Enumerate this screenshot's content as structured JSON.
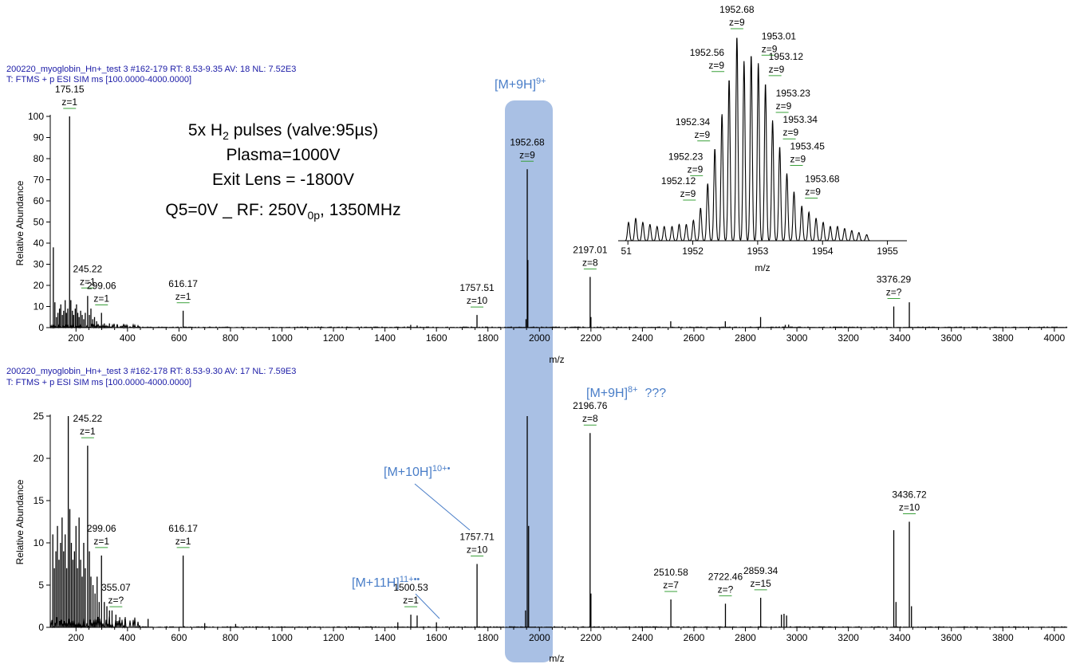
{
  "spectra": [
    {
      "header_line1": "200220_myoglobin_Hn+_test 3 #162-179  RT: 8.53-9.35  AV: 18  NL: 7.52E3",
      "header_line2": "T: FTMS + p ESI SIM ms [100.0000-4000.0000]",
      "ylabel": "Relative Abundance",
      "xlabel": "m/z"
    },
    {
      "header_line1": "200220_myoglobin_Hn+_test 3 #162-178  RT: 8.53-9.30  AV: 17  NL: 7.59E3",
      "header_line2": "T: FTMS + p ESI SIM ms [100.0000-4000.0000]",
      "ylabel": "Relative Abundance",
      "xlabel": "m/z"
    }
  ],
  "conditions": {
    "line1_a": "5x H",
    "line1_sub": "2",
    "line1_b": " pulses (valve:95µs)",
    "line2": "Plasma=1000V",
    "line3": "Exit Lens = -1800V",
    "line4_a": "Q5=0V _ RF: 250V",
    "line4_sub": "0p",
    "line4_b": ", 1350MHz"
  },
  "annotations": {
    "m9h_top": {
      "base": "[M+9H]",
      "sup": "9+"
    },
    "m9h_8": {
      "base": "[M+9H]",
      "sup": "8+",
      "tail": "  ???"
    },
    "m10h": {
      "base": "[M+10H]",
      "sup": "10+•"
    },
    "m11h": {
      "base": "[M+11H]",
      "sup": "11+••"
    }
  },
  "colors": {
    "highlight": "#a9c0e4",
    "annotation": "#4a7ec8",
    "header": "#1a1aa6",
    "trace": "#000000",
    "charge_tick": "#3aa03a"
  },
  "chart_data": [
    {
      "type": "line",
      "name": "spectrum-top",
      "x_range": [
        100,
        4050
      ],
      "xticks": [
        "200",
        "400",
        "600",
        "800",
        "1000",
        "1200",
        "1400",
        "1600",
        "1800",
        "2000",
        "2200",
        "2400",
        "2600",
        "2800",
        "3000",
        "3200",
        "3400",
        "3600",
        "3800",
        "4000"
      ],
      "y_range": [
        0,
        100
      ],
      "yticks": [
        "0",
        "10",
        "20",
        "30",
        "40",
        "50",
        "60",
        "70",
        "80",
        "90",
        "100"
      ],
      "sticks": [
        [
          112,
          38
        ],
        [
          118,
          12
        ],
        [
          124,
          5
        ],
        [
          130,
          7
        ],
        [
          136,
          9
        ],
        [
          141,
          11
        ],
        [
          147,
          6
        ],
        [
          152,
          8
        ],
        [
          158,
          13
        ],
        [
          163,
          7
        ],
        [
          168,
          9
        ],
        [
          175.15,
          100
        ],
        [
          180,
          13
        ],
        [
          186,
          8
        ],
        [
          191,
          6
        ],
        [
          197,
          9
        ],
        [
          202,
          11
        ],
        [
          207,
          7
        ],
        [
          212,
          5
        ],
        [
          218,
          8
        ],
        [
          224,
          6
        ],
        [
          230,
          4
        ],
        [
          236,
          7
        ],
        [
          245.22,
          15
        ],
        [
          252,
          6
        ],
        [
          258,
          9
        ],
        [
          265,
          4
        ],
        [
          272,
          5
        ],
        [
          280,
          3
        ],
        [
          299.06,
          7
        ],
        [
          310,
          2
        ],
        [
          330,
          2
        ],
        [
          360,
          1.5
        ],
        [
          400,
          1
        ],
        [
          616.17,
          8
        ],
        [
          1500,
          1.3
        ],
        [
          1525,
          1
        ],
        [
          1757.51,
          6
        ],
        [
          1952.68,
          75
        ],
        [
          1955,
          32
        ],
        [
          1948,
          4
        ],
        [
          2197.01,
          24
        ],
        [
          2200,
          5
        ],
        [
          2510,
          3
        ],
        [
          2722,
          3
        ],
        [
          2859,
          5
        ],
        [
          2955,
          1.3
        ],
        [
          2968,
          1.4
        ],
        [
          3376.29,
          10
        ],
        [
          3436.72,
          12
        ]
      ],
      "peak_labels": [
        {
          "mz": 175.15,
          "y": 100,
          "label": "175.15",
          "z": "z=1"
        },
        {
          "mz": 245.22,
          "y": 15,
          "label": "245.22",
          "z": "z=1"
        },
        {
          "mz": 299.06,
          "y": 7,
          "label": "299.06",
          "z": "z=1"
        },
        {
          "mz": 616.17,
          "y": 8,
          "label": "616.17",
          "z": "z=1"
        },
        {
          "mz": 1757.51,
          "y": 6,
          "label": "1757.51",
          "z": "z=10"
        },
        {
          "mz": 1952.68,
          "y": 75,
          "label": "1952.68",
          "z": "z=9"
        },
        {
          "mz": 2197.01,
          "y": 24,
          "label": "2197.01",
          "z": "z=8"
        },
        {
          "mz": 3376.29,
          "y": 10,
          "label": "3376.29",
          "z": "z=?"
        }
      ]
    },
    {
      "type": "line",
      "name": "spectrum-bottom",
      "x_range": [
        100,
        4050
      ],
      "xticks": [
        "200",
        "400",
        "600",
        "800",
        "1000",
        "1200",
        "1400",
        "1600",
        "1800",
        "2000",
        "2200",
        "2400",
        "2600",
        "2800",
        "3000",
        "3200",
        "3400",
        "3600",
        "3800",
        "4000"
      ],
      "y_range": [
        0,
        25
      ],
      "yticks": [
        "0",
        "5",
        "10",
        "15",
        "20",
        "25"
      ],
      "sticks": [
        [
          110,
          11
        ],
        [
          116,
          7
        ],
        [
          122,
          9
        ],
        [
          128,
          12
        ],
        [
          134,
          8
        ],
        [
          140,
          10
        ],
        [
          146,
          13
        ],
        [
          152,
          9
        ],
        [
          158,
          11
        ],
        [
          164,
          7
        ],
        [
          170,
          25
        ],
        [
          176,
          14
        ],
        [
          182,
          10
        ],
        [
          188,
          8
        ],
        [
          194,
          9
        ],
        [
          200,
          12
        ],
        [
          206,
          7
        ],
        [
          212,
          13
        ],
        [
          218,
          8
        ],
        [
          224,
          6
        ],
        [
          230,
          10
        ],
        [
          236,
          7
        ],
        [
          245.22,
          21.5
        ],
        [
          252,
          9
        ],
        [
          258,
          6
        ],
        [
          266,
          5
        ],
        [
          274,
          4
        ],
        [
          282,
          6
        ],
        [
          290,
          3
        ],
        [
          299.06,
          8.5
        ],
        [
          310,
          3
        ],
        [
          320,
          2.5
        ],
        [
          330,
          2
        ],
        [
          340,
          2
        ],
        [
          355.07,
          1.5
        ],
        [
          370,
          1.2
        ],
        [
          390,
          1
        ],
        [
          480,
          1
        ],
        [
          616.17,
          8.5
        ],
        [
          700,
          0.5
        ],
        [
          820,
          0.4
        ],
        [
          1450,
          0.6
        ],
        [
          1500.53,
          1.5
        ],
        [
          1525,
          1.4
        ],
        [
          1600,
          0.6
        ],
        [
          1757.71,
          7.5
        ],
        [
          1952.68,
          25
        ],
        [
          1958,
          12
        ],
        [
          1946,
          2
        ],
        [
          2196.76,
          23
        ],
        [
          2200,
          4
        ],
        [
          2510.58,
          3.3
        ],
        [
          2722.46,
          2.8
        ],
        [
          2859.34,
          3.5
        ],
        [
          2940,
          1.5
        ],
        [
          2950,
          1.6
        ],
        [
          2960,
          1.4
        ],
        [
          3376.29,
          11.5
        ],
        [
          3385,
          3
        ],
        [
          3436.72,
          12.5
        ],
        [
          3445,
          2.5
        ]
      ],
      "peak_labels": [
        {
          "mz": 245.22,
          "y": 21.5,
          "label": "245.22",
          "z": "z=1"
        },
        {
          "mz": 299.06,
          "y": 8.5,
          "label": "299.06",
          "z": "z=1"
        },
        {
          "mz": 355.07,
          "y": 1.5,
          "label": "355.07",
          "z": "z=?"
        },
        {
          "mz": 616.17,
          "y": 8.5,
          "label": "616.17",
          "z": "z=1"
        },
        {
          "mz": 1500.53,
          "y": 1.5,
          "label": "1500.53",
          "z": "z=1"
        },
        {
          "mz": 1757.71,
          "y": 7.5,
          "label": "1757.71",
          "z": "z=10"
        },
        {
          "mz": 2196.76,
          "y": 23,
          "label": "2196.76",
          "z": "z=8"
        },
        {
          "mz": 2510.58,
          "y": 3.3,
          "label": "2510.58",
          "z": "z=7"
        },
        {
          "mz": 2722.46,
          "y": 2.8,
          "label": "2722.46",
          "z": "z=?"
        },
        {
          "mz": 2859.34,
          "y": 3.5,
          "label": "2859.34",
          "z": "z=15"
        },
        {
          "mz": 3436.72,
          "y": 12.5,
          "label": "3436.72",
          "z": "z=10"
        }
      ]
    },
    {
      "type": "line",
      "name": "inset-isotope-envelope",
      "x_range": [
        1950.85,
        1955.3
      ],
      "xticks": [
        "51",
        "1952",
        "1953",
        "1954",
        "1955"
      ],
      "xlabel": "m/z",
      "y_range": [
        0,
        100
      ],
      "sticks": [
        [
          1951.01,
          9
        ],
        [
          1951.12,
          11
        ],
        [
          1951.23,
          9
        ],
        [
          1951.34,
          8
        ],
        [
          1951.45,
          7
        ],
        [
          1951.56,
          7
        ],
        [
          1951.68,
          7
        ],
        [
          1951.79,
          8
        ],
        [
          1951.9,
          8
        ],
        [
          1952.01,
          10
        ],
        [
          1952.12,
          16
        ],
        [
          1952.23,
          28
        ],
        [
          1952.34,
          45
        ],
        [
          1952.45,
          62
        ],
        [
          1952.56,
          79
        ],
        [
          1952.68,
          100
        ],
        [
          1952.79,
          88
        ],
        [
          1952.9,
          91
        ],
        [
          1953.01,
          87
        ],
        [
          1953.12,
          77
        ],
        [
          1953.23,
          59
        ],
        [
          1953.34,
          46
        ],
        [
          1953.45,
          33
        ],
        [
          1953.56,
          24
        ],
        [
          1953.68,
          17
        ],
        [
          1953.79,
          14
        ],
        [
          1953.9,
          11
        ],
        [
          1954.01,
          9
        ],
        [
          1954.12,
          7
        ],
        [
          1954.23,
          7
        ],
        [
          1954.34,
          6
        ],
        [
          1954.45,
          5
        ],
        [
          1954.56,
          4
        ],
        [
          1954.68,
          3
        ]
      ],
      "peak_labels": [
        {
          "mz": 1952.68,
          "y": 100,
          "label": "1952.68",
          "z": "z=9"
        },
        {
          "mz": 1952.56,
          "y": 79,
          "label": "1952.56",
          "z": "z=9"
        },
        {
          "mz": 1953.01,
          "y": 87,
          "label": "1953.01",
          "z": "z=9"
        },
        {
          "mz": 1953.12,
          "y": 77,
          "label": "1953.12",
          "z": "z=9"
        },
        {
          "mz": 1952.34,
          "y": 45,
          "label": "1952.34",
          "z": "z=9"
        },
        {
          "mz": 1953.23,
          "y": 59,
          "label": "1953.23",
          "z": "z=9"
        },
        {
          "mz": 1953.34,
          "y": 46,
          "label": "1953.34",
          "z": "z=9"
        },
        {
          "mz": 1952.23,
          "y": 28,
          "label": "1952.23",
          "z": "z=9"
        },
        {
          "mz": 1953.45,
          "y": 33,
          "label": "1953.45",
          "z": "z=9"
        },
        {
          "mz": 1952.12,
          "y": 16,
          "label": "1952.12",
          "z": "z=9"
        },
        {
          "mz": 1953.68,
          "y": 17,
          "label": "1953.68",
          "z": "z=9"
        }
      ]
    }
  ]
}
